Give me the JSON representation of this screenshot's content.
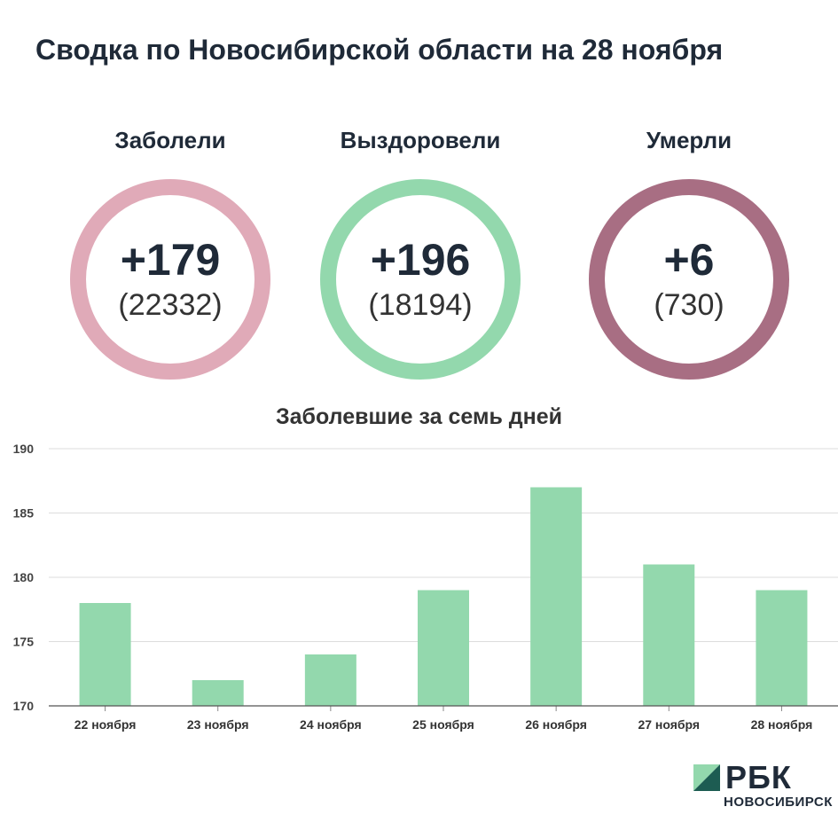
{
  "title": "Сводка по Новосибирской области на 28 ноября",
  "stats": [
    {
      "label": "Заболели",
      "delta": "+179",
      "total": "(22332)",
      "color": "#e0aab8"
    },
    {
      "label": "Выздоровели",
      "delta": "+196",
      "total": "(18194)",
      "color": "#93d8ad"
    },
    {
      "label": "Умерли",
      "delta": "+6",
      "total": "(730)",
      "color": "#a86e83"
    }
  ],
  "chart_data": {
    "type": "bar",
    "title": "Заболевшие за семь дней",
    "categories": [
      "22 ноября",
      "23 ноября",
      "24 ноября",
      "25 ноября",
      "26 ноября",
      "27 ноября",
      "28 ноября"
    ],
    "values": [
      178,
      172,
      174,
      179,
      187,
      181,
      179
    ],
    "ylim": [
      170,
      190
    ],
    "yticks": [
      170,
      175,
      180,
      185,
      190
    ],
    "grid": true,
    "bar_color": "#93d8ad",
    "xlabel": "",
    "ylabel": ""
  },
  "brand": {
    "name": "РБК",
    "region": "НОВОСИБИРСК",
    "colors": {
      "light": "#93d8ad",
      "dark": "#1d5c52"
    }
  }
}
